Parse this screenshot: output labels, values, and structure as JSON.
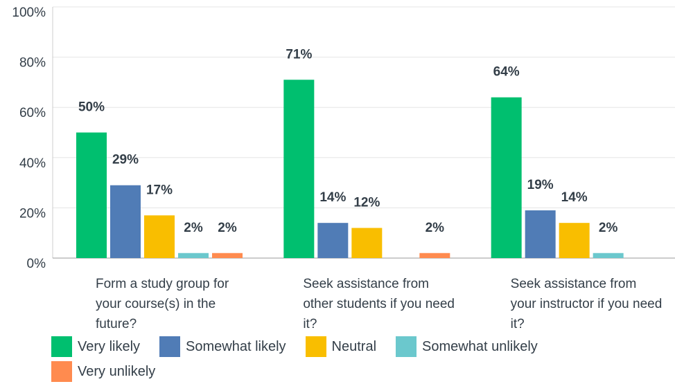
{
  "chart_data": {
    "type": "bar",
    "categories": [
      "Form a study group for your course(s) in the future?",
      "Seek assistance from other students if you need it?",
      "Seek assistance from your instructor if you need it?"
    ],
    "series": [
      {
        "name": "Very likely",
        "color": "#00bf6f",
        "values": [
          50,
          71,
          64
        ],
        "value_labels": [
          "50%",
          "71%",
          "64%"
        ]
      },
      {
        "name": "Somewhat likely",
        "color": "#507cb6",
        "values": [
          29,
          14,
          19
        ],
        "value_labels": [
          "29%",
          "14%",
          "19%"
        ]
      },
      {
        "name": "Neutral",
        "color": "#f9be00",
        "values": [
          17,
          12,
          14
        ],
        "value_labels": [
          "17%",
          "12%",
          "14%"
        ]
      },
      {
        "name": "Somewhat unlikely",
        "color": "#6bc8cd",
        "values": [
          2,
          null,
          2
        ],
        "value_labels": [
          "2%",
          null,
          "2%"
        ]
      },
      {
        "name": "Very unlikely",
        "color": "#ff8b4f",
        "values": [
          2,
          2,
          null
        ],
        "value_labels": [
          "2%",
          "2%",
          null
        ]
      }
    ],
    "ylim": [
      0,
      100
    ],
    "yticks": [
      {
        "value": 0,
        "label": "0%"
      },
      {
        "value": 20,
        "label": "20%"
      },
      {
        "value": 40,
        "label": "40%"
      },
      {
        "value": 60,
        "label": "60%"
      },
      {
        "value": 80,
        "label": "80%"
      },
      {
        "value": 100,
        "label": "100%"
      }
    ],
    "grid": true
  }
}
